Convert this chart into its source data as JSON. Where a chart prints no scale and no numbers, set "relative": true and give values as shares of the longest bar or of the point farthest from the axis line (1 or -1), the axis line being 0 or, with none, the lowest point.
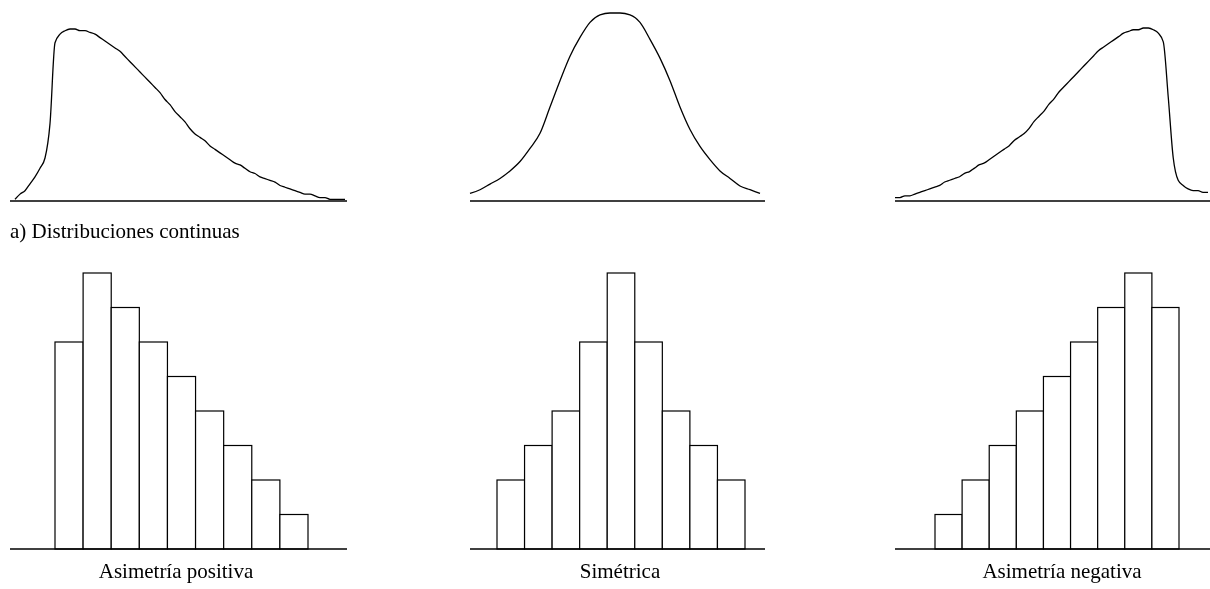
{
  "chart_data": [
    {
      "type": "line",
      "relative": true,
      "color": "#000000",
      "annotations": [
        "a) Distribuciones continuas"
      ],
      "categories": [
        null,
        null,
        null,
        null,
        null,
        null,
        null,
        null,
        null,
        null,
        null,
        null,
        null,
        null,
        null,
        null,
        null,
        null,
        null,
        null,
        null,
        null,
        null,
        null,
        null,
        null,
        null,
        null,
        null,
        null,
        null,
        null,
        null,
        null,
        null,
        null,
        null,
        null,
        null,
        null,
        null,
        null,
        null,
        null,
        null,
        null,
        null,
        null,
        null,
        null,
        null,
        null,
        null,
        null,
        null,
        null,
        null,
        null,
        null,
        null,
        null,
        null,
        null,
        null,
        null,
        null,
        null
      ],
      "values": [
        0.01,
        0.04,
        0.06,
        0.1,
        0.14,
        0.19,
        0.25,
        0.45,
        0.92,
        0.97,
        0.99,
        1.0,
        1.0,
        0.99,
        0.99,
        0.98,
        0.97,
        0.95,
        0.93,
        0.91,
        0.89,
        0.87,
        0.84,
        0.81,
        0.78,
        0.75,
        0.72,
        0.69,
        0.66,
        0.63,
        0.59,
        0.56,
        0.52,
        0.49,
        0.46,
        0.42,
        0.39,
        0.37,
        0.35,
        0.32,
        0.3,
        0.28,
        0.26,
        0.24,
        0.22,
        0.21,
        0.19,
        0.17,
        0.16,
        0.14,
        0.13,
        0.12,
        0.11,
        0.09,
        0.08,
        0.07,
        0.06,
        0.05,
        0.04,
        0.04,
        0.03,
        0.02,
        0.02,
        0.01,
        0.01,
        0.01,
        0.01
      ]
    },
    {
      "type": "line",
      "relative": true,
      "color": "#000000",
      "categories": [
        null,
        null,
        null,
        null,
        null,
        null,
        null,
        null,
        null,
        null,
        null,
        null,
        null,
        null,
        null,
        null,
        null,
        null,
        null,
        null,
        null,
        null,
        null,
        null,
        null,
        null,
        null,
        null,
        null,
        null
      ],
      "values": [
        0.04,
        0.06,
        0.09,
        0.12,
        0.16,
        0.21,
        0.28,
        0.36,
        0.5,
        0.64,
        0.77,
        0.87,
        0.95,
        0.99,
        1.0,
        1.0,
        0.99,
        0.95,
        0.86,
        0.76,
        0.64,
        0.5,
        0.38,
        0.29,
        0.22,
        0.16,
        0.12,
        0.08,
        0.06,
        0.04
      ]
    },
    {
      "type": "line",
      "relative": true,
      "color": "#000000",
      "categories": [
        null,
        null,
        null,
        null,
        null,
        null,
        null,
        null,
        null,
        null,
        null,
        null,
        null,
        null,
        null,
        null,
        null,
        null,
        null,
        null,
        null,
        null,
        null,
        null,
        null,
        null,
        null,
        null,
        null,
        null,
        null,
        null,
        null,
        null,
        null,
        null,
        null,
        null,
        null,
        null,
        null,
        null,
        null,
        null,
        null,
        null,
        null,
        null,
        null,
        null,
        null,
        null,
        null,
        null,
        null,
        null,
        null,
        null,
        null,
        null,
        null,
        null,
        null,
        null
      ],
      "values": [
        0.02,
        0.02,
        0.03,
        0.03,
        0.04,
        0.05,
        0.06,
        0.07,
        0.08,
        0.09,
        0.11,
        0.12,
        0.13,
        0.14,
        0.16,
        0.17,
        0.19,
        0.21,
        0.22,
        0.24,
        0.26,
        0.28,
        0.3,
        0.32,
        0.35,
        0.37,
        0.39,
        0.42,
        0.46,
        0.49,
        0.52,
        0.56,
        0.59,
        0.63,
        0.66,
        0.69,
        0.72,
        0.75,
        0.78,
        0.81,
        0.84,
        0.87,
        0.89,
        0.91,
        0.93,
        0.95,
        0.97,
        0.98,
        0.99,
        0.99,
        1.0,
        1.0,
        0.99,
        0.97,
        0.92,
        0.6,
        0.25,
        0.12,
        0.09,
        0.07,
        0.06,
        0.06,
        0.05,
        0.05
      ]
    },
    {
      "type": "bar",
      "relative": true,
      "color": "#ffffff",
      "xlabel": "Asimetría positiva",
      "categories": [
        null,
        null,
        null,
        null,
        null,
        null,
        null,
        null,
        null
      ],
      "values": [
        0.75,
        1,
        0.875,
        0.75,
        0.625,
        0.5,
        0.375,
        0.25,
        0.125
      ]
    },
    {
      "type": "bar",
      "relative": true,
      "color": "#ffffff",
      "xlabel": "Simétrica",
      "categories": [
        null,
        null,
        null,
        null,
        null,
        null,
        null,
        null,
        null
      ],
      "values": [
        0.25,
        0.375,
        0.5,
        0.75,
        1,
        0.75,
        0.5,
        0.375,
        0.25
      ]
    },
    {
      "type": "bar",
      "relative": true,
      "color": "#ffffff",
      "xlabel": "Asimetría negativa",
      "categories": [
        null,
        null,
        null,
        null,
        null,
        null,
        null,
        null,
        null
      ],
      "values": [
        0.125,
        0.25,
        0.375,
        0.5,
        0.625,
        0.75,
        0.875,
        1,
        0.875
      ]
    }
  ]
}
